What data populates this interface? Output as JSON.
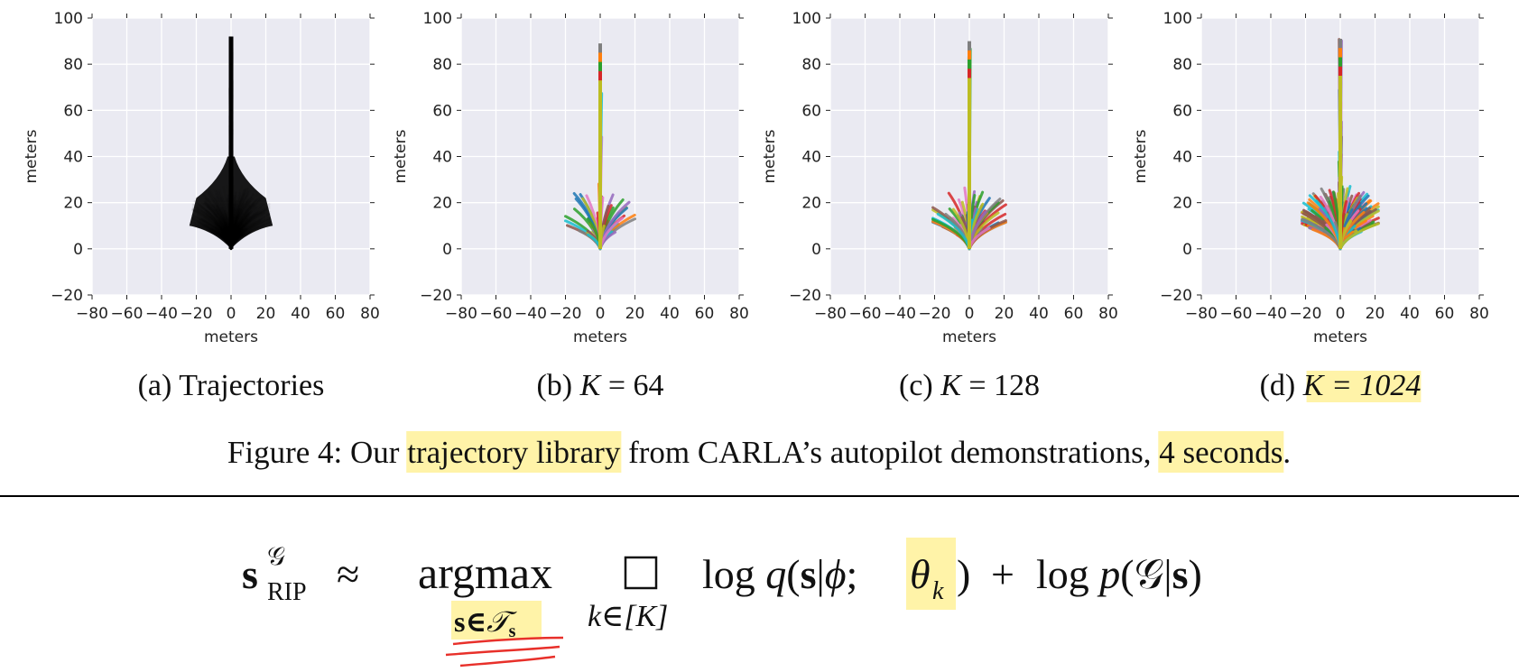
{
  "figure": {
    "caption_prefix": "Figure 4:",
    "caption_parts": [
      {
        "text": "Our ",
        "highlight": false
      },
      {
        "text": "trajectory library",
        "highlight": true
      },
      {
        "text": " from CARLA’s autopilot demonstrations, ",
        "highlight": false
      },
      {
        "text": "4 seconds",
        "highlight": true
      },
      {
        "text": ".",
        "highlight": false
      }
    ],
    "highlight_color": "#fff3a8"
  },
  "chart_data": [
    {
      "type": "line",
      "subcaption": "(a) Trajectories",
      "xlabel": "meters",
      "ylabel": "meters",
      "xlim": [
        -80,
        80
      ],
      "ylim": [
        -20,
        100
      ],
      "xticks": [
        -80,
        -60,
        -40,
        -20,
        0,
        20,
        40,
        60,
        80
      ],
      "yticks": [
        -20,
        0,
        20,
        40,
        60,
        80,
        100
      ],
      "grid": true,
      "series_color": "#000000",
      "series_count_note": "",
      "fan": {
        "reach_forward": 92,
        "reach_side": 22
      }
    },
    {
      "type": "line",
      "subcaption_parts": [
        {
          "text": "(b) ",
          "math": false
        },
        {
          "text": "K",
          "math": true
        },
        {
          "text": " = 64",
          "math": false
        }
      ],
      "xlabel": "meters",
      "ylabel": "meters",
      "xlim": [
        -80,
        80
      ],
      "ylim": [
        -20,
        100
      ],
      "xticks": [
        -80,
        -60,
        -40,
        -20,
        0,
        20,
        40,
        60,
        80
      ],
      "yticks": [
        -20,
        0,
        20,
        40,
        60,
        80,
        100
      ],
      "grid": true,
      "K": 64,
      "fan": {
        "reach_forward": 89,
        "reach_side": 20
      }
    },
    {
      "type": "line",
      "subcaption_parts": [
        {
          "text": "(c) ",
          "math": false
        },
        {
          "text": "K",
          "math": true
        },
        {
          "text": " = 128",
          "math": false
        }
      ],
      "xlabel": "meters",
      "ylabel": "meters",
      "xlim": [
        -80,
        80
      ],
      "ylim": [
        -20,
        100
      ],
      "xticks": [
        -80,
        -60,
        -40,
        -20,
        0,
        20,
        40,
        60,
        80
      ],
      "yticks": [
        -20,
        0,
        20,
        40,
        60,
        80,
        100
      ],
      "grid": true,
      "K": 128,
      "fan": {
        "reach_forward": 90,
        "reach_side": 21
      }
    },
    {
      "type": "line",
      "subcaption_parts": [
        {
          "text": "(d) ",
          "math": false
        },
        {
          "text": "K = 1024",
          "math": true,
          "highlight": true
        }
      ],
      "xlabel": "meters",
      "ylabel": "meters",
      "xlim": [
        -80,
        80
      ],
      "ylim": [
        -20,
        100
      ],
      "xticks": [
        -80,
        -60,
        -40,
        -20,
        0,
        20,
        40,
        60,
        80
      ],
      "yticks": [
        -20,
        0,
        20,
        40,
        60,
        80,
        100
      ],
      "grid": true,
      "K": 1024,
      "fan": {
        "reach_forward": 91,
        "reach_side": 22
      }
    }
  ],
  "equation": {
    "lhs": "s",
    "lhs_sup": "𝒢",
    "lhs_sub": "RIP",
    "approx": "≈",
    "op": "argmax",
    "op_sub": "s∈𝒯",
    "op_sub_s": "s",
    "agg_sub": "k∈[K]",
    "term1": "log q(s|ϕ; ",
    "theta": "θ",
    "theta_sub": "k",
    "term1_close": ")",
    "plus": "+",
    "term2": "log p(𝒢|s)",
    "underline_color": "#e8302a"
  },
  "palette": [
    "#1f77b4",
    "#ff7f0e",
    "#2ca02c",
    "#d62728",
    "#9467bd",
    "#8c564b",
    "#e377c2",
    "#7f7f7f",
    "#bcbd22",
    "#17becf"
  ]
}
